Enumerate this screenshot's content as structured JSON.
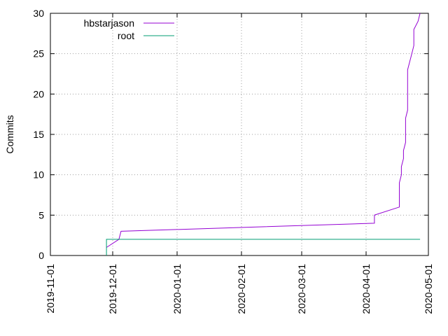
{
  "chart_data": {
    "type": "line",
    "title": "",
    "ylabel": "Commits",
    "xlabel": "",
    "ylim": [
      0,
      30
    ],
    "xlim": [
      "2019-11-01",
      "2020-05-01"
    ],
    "y_ticks": [
      0,
      5,
      10,
      15,
      20,
      25,
      30
    ],
    "x_ticks": [
      "2019-11-01",
      "2019-12-01",
      "2020-01-01",
      "2020-02-01",
      "2020-03-01",
      "2020-04-01",
      "2020-05-01"
    ],
    "grid": "dotted-horizontal-and-vertical",
    "legend_position": "top-left",
    "series": [
      {
        "name": "hbstarjason",
        "color": "#9400d3",
        "points": [
          [
            "2019-11-28",
            1
          ],
          [
            "2019-12-04",
            2
          ],
          [
            "2019-12-05",
            3
          ],
          [
            "2020-04-05",
            4
          ],
          [
            "2020-04-05",
            5
          ],
          [
            "2020-04-17",
            6
          ],
          [
            "2020-04-17",
            8
          ],
          [
            "2020-04-17",
            9
          ],
          [
            "2020-04-18",
            10
          ],
          [
            "2020-04-18",
            11
          ],
          [
            "2020-04-19",
            12
          ],
          [
            "2020-04-19",
            13
          ],
          [
            "2020-04-20",
            14
          ],
          [
            "2020-04-20",
            15
          ],
          [
            "2020-04-20",
            16
          ],
          [
            "2020-04-20",
            17
          ],
          [
            "2020-04-21",
            18
          ],
          [
            "2020-04-21",
            19
          ],
          [
            "2020-04-21",
            20
          ],
          [
            "2020-04-21",
            21
          ],
          [
            "2020-04-21",
            22
          ],
          [
            "2020-04-21",
            23
          ],
          [
            "2020-04-22",
            24
          ],
          [
            "2020-04-23",
            25
          ],
          [
            "2020-04-24",
            26
          ],
          [
            "2020-04-24",
            27
          ],
          [
            "2020-04-24",
            28
          ],
          [
            "2020-04-26",
            29
          ],
          [
            "2020-04-27",
            30
          ]
        ]
      },
      {
        "name": "root",
        "color": "#009e73",
        "points": [
          [
            "2019-11-28",
            0
          ],
          [
            "2019-11-28",
            2
          ],
          [
            "2020-04-27",
            2
          ]
        ]
      }
    ]
  }
}
